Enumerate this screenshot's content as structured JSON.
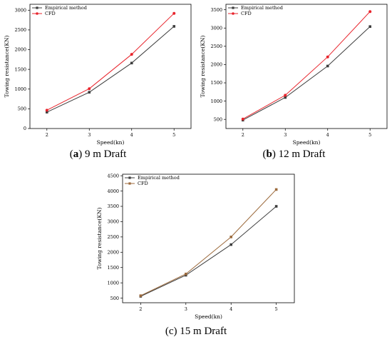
{
  "chart_data": [
    {
      "type": "line",
      "xlabel": "Speed(kn)",
      "ylabel": "Towing resistance(KN)",
      "x": [
        2,
        3,
        4,
        5
      ],
      "xlim": [
        1.6,
        5.4
      ],
      "ylim": [
        0,
        3150
      ],
      "yticks": [
        0,
        500,
        1000,
        1500,
        2000,
        2500,
        3000
      ],
      "legend_position": "top-left",
      "series": [
        {
          "name": "Empirical method",
          "color": "#3d3d3d",
          "marker": "square",
          "values": [
            415,
            920,
            1660,
            2590
          ]
        },
        {
          "name": "CFD",
          "color": "#e8242c",
          "marker": "circle",
          "values": [
            465,
            1010,
            1880,
            2920
          ]
        }
      ],
      "caption": {
        "label": "a",
        "text": " 9 m Draft"
      }
    },
    {
      "type": "line",
      "xlabel": "Speed(kn)",
      "ylabel": "Towing resistance(KN)",
      "x": [
        2,
        3,
        4,
        5
      ],
      "xlim": [
        1.6,
        5.4
      ],
      "ylim": [
        250,
        3650
      ],
      "yticks": [
        500,
        1000,
        1500,
        2000,
        2500,
        3000,
        3500
      ],
      "legend_position": "top-left",
      "series": [
        {
          "name": "Empirical method",
          "color": "#3d3d3d",
          "marker": "square",
          "values": [
            480,
            1100,
            1960,
            3040
          ]
        },
        {
          "name": "CFD",
          "color": "#e8242c",
          "marker": "circle",
          "values": [
            510,
            1160,
            2210,
            3450
          ]
        }
      ],
      "caption": {
        "label": "b",
        "text": " 12 m Draft"
      }
    },
    {
      "type": "line",
      "xlabel": "Speed(kn)",
      "ylabel": "Towing resistance(KN)",
      "x": [
        2,
        3,
        4,
        5
      ],
      "xlim": [
        1.6,
        5.4
      ],
      "ylim": [
        350,
        4550
      ],
      "yticks": [
        500,
        1000,
        1500,
        2000,
        2500,
        3000,
        3500,
        4000,
        4500
      ],
      "legend_position": "top-left",
      "series": [
        {
          "name": "Empirical method",
          "color": "#3d3d3d",
          "marker": "square",
          "values": [
            560,
            1250,
            2250,
            3500
          ]
        },
        {
          "name": "CFD",
          "color": "#9c6a3c",
          "marker": "square",
          "values": [
            580,
            1290,
            2500,
            4050
          ]
        }
      ],
      "caption": {
        "label": "c",
        "text": " 15 m Draft"
      }
    }
  ]
}
